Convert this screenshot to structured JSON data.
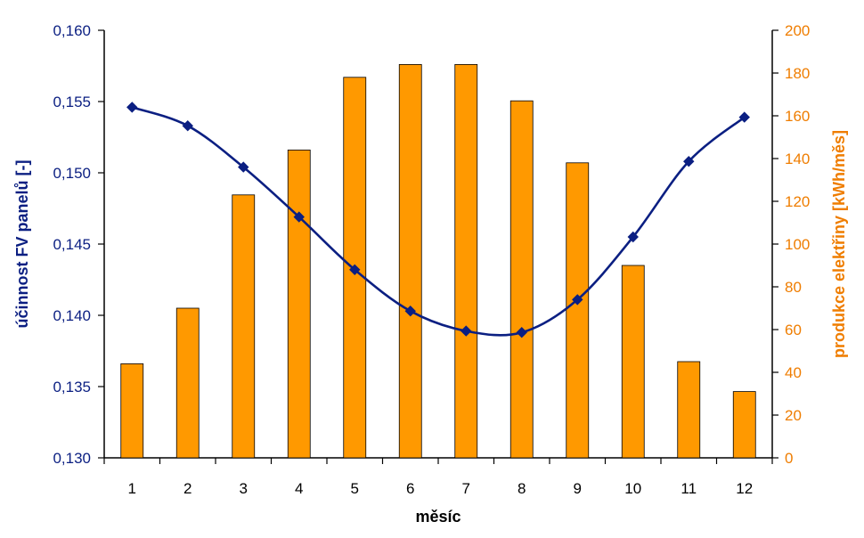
{
  "chart_data": {
    "type": "bar-line-combo",
    "categories": [
      "1",
      "2",
      "3",
      "4",
      "5",
      "6",
      "7",
      "8",
      "9",
      "10",
      "11",
      "12"
    ],
    "x_label": "měsíc",
    "left_axis": {
      "label": "účinnost FV panelů [-]",
      "min": 0.13,
      "max": 0.16,
      "ticks": [
        0.13,
        0.135,
        0.14,
        0.145,
        0.15,
        0.155,
        0.16
      ],
      "tick_labels": [
        "0,130",
        "0,135",
        "0,140",
        "0,145",
        "0,150",
        "0,155",
        "0,160"
      ],
      "color": "#0b1f82"
    },
    "right_axis": {
      "label": "produkce elektřiny [kWh/měs]",
      "min": 0,
      "max": 200,
      "ticks": [
        0,
        20,
        40,
        60,
        80,
        100,
        120,
        140,
        160,
        180,
        200
      ],
      "tick_labels": [
        "0",
        "20",
        "40",
        "60",
        "80",
        "100",
        "120",
        "140",
        "160",
        "180",
        "200"
      ],
      "color": "#ef7d00"
    },
    "series": [
      {
        "type": "bar",
        "axis": "right",
        "values": [
          44,
          70,
          123,
          144,
          178,
          184,
          184,
          167,
          138,
          90,
          45,
          31
        ],
        "color": "#ff9900"
      },
      {
        "type": "line",
        "axis": "left",
        "values": [
          0.1546,
          0.1533,
          0.1504,
          0.1469,
          0.1432,
          0.1403,
          0.1389,
          0.1388,
          0.1411,
          0.1455,
          0.1508,
          0.1539
        ],
        "color": "#0b1f82"
      }
    ],
    "grid": false,
    "legend": "none"
  }
}
